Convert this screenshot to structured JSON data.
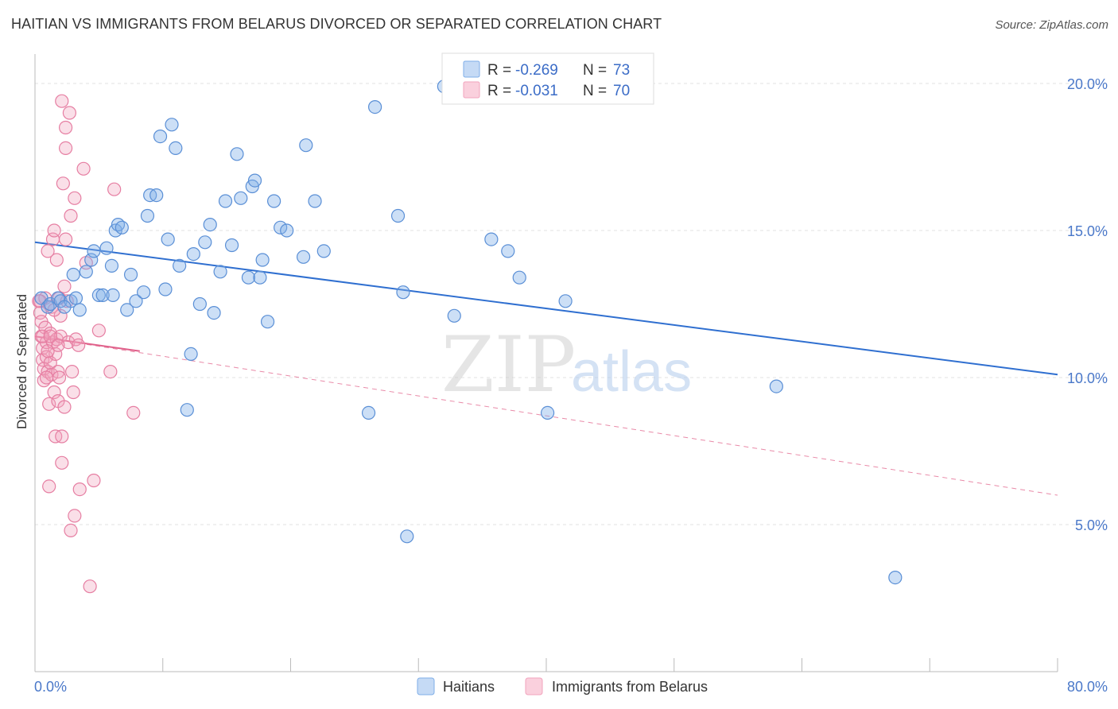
{
  "title": "HAITIAN VS IMMIGRANTS FROM BELARUS DIVORCED OR SEPARATED CORRELATION CHART",
  "source": "Source: ZipAtlas.com",
  "watermark": {
    "zip": "ZIP",
    "atlas": "atlas"
  },
  "legend_top": [
    {
      "r_label": "R =",
      "r_value": "-0.269",
      "n_label": "N =",
      "n_value": "73",
      "color": "#7faee8"
    },
    {
      "r_label": "R =",
      "r_value": "-0.031",
      "n_label": "N =",
      "n_value": "70",
      "color": "#f2a3bd"
    }
  ],
  "chart_data": {
    "type": "scatter",
    "title": "HAITIAN VS IMMIGRANTS FROM BELARUS DIVORCED OR SEPARATED CORRELATION CHART",
    "xlabel": "",
    "ylabel": "Divorced or Separated",
    "xlim": [
      0,
      80
    ],
    "ylim": [
      0,
      21
    ],
    "x_tick_labels": [
      "0.0%",
      "80.0%"
    ],
    "y_ticks": [
      5,
      10,
      15,
      20
    ],
    "y_tick_labels": [
      "5.0%",
      "10.0%",
      "15.0%",
      "20.0%"
    ],
    "grid": true,
    "legend_position": "top-center",
    "series": [
      {
        "name": "Haitians",
        "color": "#7faee8",
        "stroke": "#5a8fd6",
        "R": -0.269,
        "N": 73,
        "trend": {
          "x": [
            0,
            80
          ],
          "y": [
            14.6,
            10.1
          ],
          "style": "solid",
          "color": "#2f6fd0"
        },
        "points": [
          [
            0.5,
            12.7
          ],
          [
            1.0,
            12.4
          ],
          [
            1.2,
            12.5
          ],
          [
            1.8,
            12.7
          ],
          [
            2.0,
            12.6
          ],
          [
            2.8,
            12.6
          ],
          [
            3.2,
            12.7
          ],
          [
            3.5,
            12.3
          ],
          [
            3.0,
            13.5
          ],
          [
            4.0,
            13.6
          ],
          [
            4.4,
            14.0
          ],
          [
            4.6,
            14.3
          ],
          [
            5.0,
            12.8
          ],
          [
            5.3,
            12.8
          ],
          [
            5.6,
            14.4
          ],
          [
            6.1,
            12.8
          ],
          [
            6.3,
            15.0
          ],
          [
            6.5,
            15.2
          ],
          [
            6.8,
            15.1
          ],
          [
            7.2,
            12.3
          ],
          [
            7.5,
            13.5
          ],
          [
            7.9,
            12.6
          ],
          [
            8.5,
            12.9
          ],
          [
            8.8,
            15.5
          ],
          [
            9.0,
            16.2
          ],
          [
            9.5,
            16.2
          ],
          [
            9.8,
            18.2
          ],
          [
            10.2,
            13.0
          ],
          [
            10.4,
            14.7
          ],
          [
            10.7,
            18.6
          ],
          [
            11.0,
            17.8
          ],
          [
            11.3,
            13.8
          ],
          [
            11.9,
            8.9
          ],
          [
            12.2,
            10.8
          ],
          [
            12.4,
            14.2
          ],
          [
            12.9,
            12.5
          ],
          [
            13.3,
            14.6
          ],
          [
            13.7,
            15.2
          ],
          [
            14.0,
            12.2
          ],
          [
            14.5,
            13.6
          ],
          [
            14.9,
            16.0
          ],
          [
            15.4,
            14.5
          ],
          [
            15.8,
            17.6
          ],
          [
            16.1,
            16.1
          ],
          [
            16.7,
            13.4
          ],
          [
            17.0,
            16.5
          ],
          [
            17.2,
            16.7
          ],
          [
            17.6,
            13.4
          ],
          [
            17.8,
            14.0
          ],
          [
            18.2,
            11.9
          ],
          [
            18.7,
            16.0
          ],
          [
            19.2,
            15.1
          ],
          [
            19.7,
            15.0
          ],
          [
            21.0,
            14.1
          ],
          [
            21.2,
            17.9
          ],
          [
            21.9,
            16.0
          ],
          [
            22.6,
            14.3
          ],
          [
            26.1,
            8.8
          ],
          [
            26.6,
            19.2
          ],
          [
            28.4,
            15.5
          ],
          [
            28.8,
            12.9
          ],
          [
            29.1,
            4.6
          ],
          [
            32.8,
            12.1
          ],
          [
            35.7,
            14.7
          ],
          [
            37.0,
            14.3
          ],
          [
            37.9,
            13.4
          ],
          [
            40.1,
            8.8
          ],
          [
            41.5,
            12.6
          ],
          [
            58.0,
            9.7
          ],
          [
            67.3,
            3.2
          ],
          [
            32.0,
            19.9
          ],
          [
            6.0,
            13.8
          ],
          [
            2.3,
            12.4
          ]
        ]
      },
      {
        "name": "Immigrants from Belarus",
        "color": "#f2a3bd",
        "stroke": "#e67ea2",
        "R": -0.031,
        "N": 70,
        "trend_solid": {
          "x": [
            0,
            8.2
          ],
          "y": [
            11.4,
            10.9
          ],
          "style": "solid",
          "color": "#e0608a"
        },
        "trend_dashed": {
          "x": [
            0,
            80
          ],
          "y": [
            11.4,
            6.0
          ],
          "style": "dashed",
          "color": "#e98aa8"
        },
        "points": [
          [
            0.3,
            12.6
          ],
          [
            0.4,
            12.2
          ],
          [
            0.5,
            11.9
          ],
          [
            0.5,
            11.4
          ],
          [
            0.6,
            11.0
          ],
          [
            0.6,
            10.6
          ],
          [
            0.7,
            10.3
          ],
          [
            0.7,
            9.9
          ],
          [
            0.8,
            12.7
          ],
          [
            0.8,
            11.7
          ],
          [
            0.9,
            11.2
          ],
          [
            0.9,
            10.7
          ],
          [
            1.0,
            10.2
          ],
          [
            1.0,
            14.3
          ],
          [
            1.1,
            9.1
          ],
          [
            1.1,
            6.3
          ],
          [
            1.2,
            11.5
          ],
          [
            1.2,
            10.5
          ],
          [
            1.3,
            10.1
          ],
          [
            1.3,
            12.4
          ],
          [
            1.4,
            14.7
          ],
          [
            1.4,
            11.2
          ],
          [
            1.5,
            15.0
          ],
          [
            1.5,
            9.5
          ],
          [
            1.6,
            10.8
          ],
          [
            1.6,
            8.0
          ],
          [
            1.7,
            14.0
          ],
          [
            1.7,
            11.3
          ],
          [
            1.8,
            10.2
          ],
          [
            1.8,
            9.2
          ],
          [
            1.9,
            12.7
          ],
          [
            1.9,
            10.0
          ],
          [
            2.0,
            12.1
          ],
          [
            2.0,
            11.4
          ],
          [
            2.1,
            8.0
          ],
          [
            2.1,
            7.1
          ],
          [
            2.2,
            16.6
          ],
          [
            2.3,
            13.1
          ],
          [
            2.3,
            9.0
          ],
          [
            2.4,
            18.5
          ],
          [
            2.4,
            17.8
          ],
          [
            2.5,
            12.6
          ],
          [
            2.6,
            11.2
          ],
          [
            2.7,
            19.0
          ],
          [
            2.8,
            15.5
          ],
          [
            2.8,
            4.8
          ],
          [
            2.9,
            10.2
          ],
          [
            3.0,
            9.5
          ],
          [
            3.1,
            16.1
          ],
          [
            3.1,
            5.3
          ],
          [
            3.2,
            11.3
          ],
          [
            3.4,
            11.1
          ],
          [
            3.5,
            6.2
          ],
          [
            3.8,
            17.1
          ],
          [
            4.0,
            13.9
          ],
          [
            4.3,
            2.9
          ],
          [
            4.6,
            6.5
          ],
          [
            5.0,
            11.6
          ],
          [
            5.9,
            10.2
          ],
          [
            6.2,
            16.4
          ],
          [
            7.7,
            8.8
          ],
          [
            2.1,
            19.4
          ],
          [
            0.4,
            12.6
          ],
          [
            1.0,
            10.9
          ],
          [
            1.5,
            12.3
          ],
          [
            0.6,
            11.4
          ],
          [
            1.2,
            11.4
          ],
          [
            1.8,
            11.1
          ],
          [
            0.9,
            10.0
          ],
          [
            2.4,
            14.7
          ]
        ]
      }
    ]
  },
  "legend_bottom": [
    {
      "label": "Haitians",
      "color": "#7faee8"
    },
    {
      "label": "Immigrants from Belarus",
      "color": "#f2a3bd"
    }
  ]
}
